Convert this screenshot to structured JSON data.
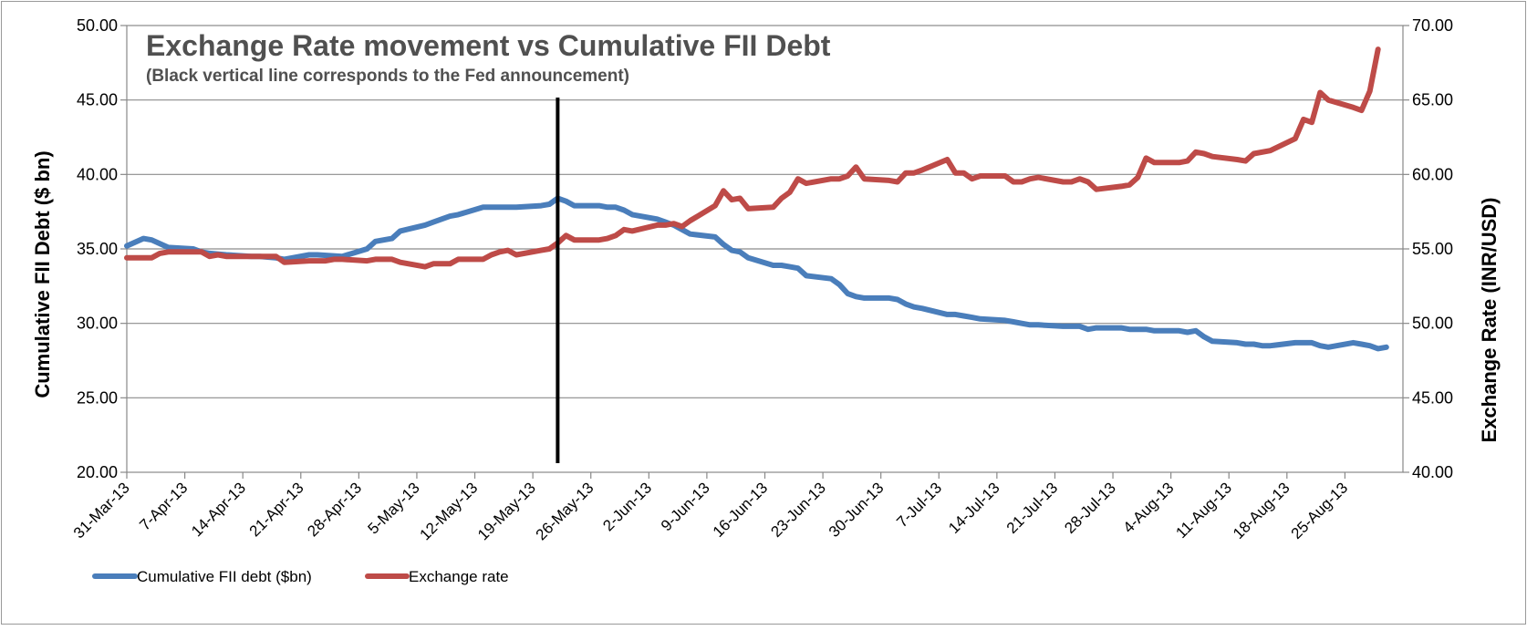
{
  "chart_data": {
    "type": "line",
    "title": "Exchange Rate movement vs Cumulative FII Debt",
    "subtitle": "(Black vertical line corresponds to the Fed announcement)",
    "ylabel": "Cumulative FII Debt ($ bn)",
    "y2label": "Exchange Rate (INR/USD)",
    "ylim": [
      20,
      50
    ],
    "y2lim": [
      40,
      70
    ],
    "yticks": [
      "20.00",
      "25.00",
      "30.00",
      "35.00",
      "40.00",
      "45.00",
      "50.00"
    ],
    "y2ticks": [
      "40.00",
      "45.00",
      "50.00",
      "55.00",
      "60.00",
      "65.00",
      "70.00"
    ],
    "xticks": [
      "31-Mar-13",
      "7-Apr-13",
      "14-Apr-13",
      "21-Apr-13",
      "28-Apr-13",
      "5-May-13",
      "12-May-13",
      "19-May-13",
      "26-May-13",
      "2-Jun-13",
      "9-Jun-13",
      "16-Jun-13",
      "23-Jun-13",
      "30-Jun-13",
      "7-Jul-13",
      "14-Jul-13",
      "21-Jul-13",
      "28-Jul-13",
      "4-Aug-13",
      "11-Aug-13",
      "18-Aug-13",
      "25-Aug-13"
    ],
    "grid": true,
    "legend_position": "bottom-left",
    "vline_date": "22-May-13",
    "series": [
      {
        "name": "Cumulative FII debt ($bn)",
        "color": "#4a7ebb",
        "axis": "left",
        "points": [
          [
            "31-Mar-13",
            35.2
          ],
          [
            "2-Apr-13",
            35.7
          ],
          [
            "3-Apr-13",
            35.6
          ],
          [
            "5-Apr-13",
            35.1
          ],
          [
            "8-Apr-13",
            35.0
          ],
          [
            "9-Apr-13",
            34.8
          ],
          [
            "10-Apr-13",
            34.7
          ],
          [
            "12-Apr-13",
            34.6
          ],
          [
            "15-Apr-13",
            34.5
          ],
          [
            "16-Apr-13",
            34.5
          ],
          [
            "18-Apr-13",
            34.4
          ],
          [
            "19-Apr-13",
            34.3
          ],
          [
            "22-Apr-13",
            34.6
          ],
          [
            "23-Apr-13",
            34.6
          ],
          [
            "26-Apr-13",
            34.5
          ],
          [
            "29-Apr-13",
            35.0
          ],
          [
            "30-Apr-13",
            35.5
          ],
          [
            "2-May-13",
            35.7
          ],
          [
            "3-May-13",
            36.2
          ],
          [
            "6-May-13",
            36.6
          ],
          [
            "7-May-13",
            36.8
          ],
          [
            "8-May-13",
            37.0
          ],
          [
            "9-May-13",
            37.2
          ],
          [
            "10-May-13",
            37.3
          ],
          [
            "13-May-13",
            37.8
          ],
          [
            "14-May-13",
            37.8
          ],
          [
            "16-May-13",
            37.8
          ],
          [
            "17-May-13",
            37.8
          ],
          [
            "20-May-13",
            37.9
          ],
          [
            "21-May-13",
            38.0
          ],
          [
            "22-May-13",
            38.4
          ],
          [
            "23-May-13",
            38.2
          ],
          [
            "24-May-13",
            37.9
          ],
          [
            "27-May-13",
            37.9
          ],
          [
            "28-May-13",
            37.8
          ],
          [
            "29-May-13",
            37.8
          ],
          [
            "30-May-13",
            37.6
          ],
          [
            "31-May-13",
            37.3
          ],
          [
            "3-Jun-13",
            37.0
          ],
          [
            "4-Jun-13",
            36.8
          ],
          [
            "5-Jun-13",
            36.6
          ],
          [
            "6-Jun-13",
            36.3
          ],
          [
            "7-Jun-13",
            36.0
          ],
          [
            "10-Jun-13",
            35.8
          ],
          [
            "11-Jun-13",
            35.3
          ],
          [
            "12-Jun-13",
            34.9
          ],
          [
            "13-Jun-13",
            34.8
          ],
          [
            "14-Jun-13",
            34.4
          ],
          [
            "17-Jun-13",
            33.9
          ],
          [
            "18-Jun-13",
            33.9
          ],
          [
            "19-Jun-13",
            33.8
          ],
          [
            "20-Jun-13",
            33.7
          ],
          [
            "21-Jun-13",
            33.2
          ],
          [
            "24-Jun-13",
            33.0
          ],
          [
            "25-Jun-13",
            32.6
          ],
          [
            "26-Jun-13",
            32.0
          ],
          [
            "27-Jun-13",
            31.8
          ],
          [
            "28-Jun-13",
            31.7
          ],
          [
            "1-Jul-13",
            31.7
          ],
          [
            "2-Jul-13",
            31.6
          ],
          [
            "3-Jul-13",
            31.3
          ],
          [
            "4-Jul-13",
            31.1
          ],
          [
            "5-Jul-13",
            31.0
          ],
          [
            "8-Jul-13",
            30.6
          ],
          [
            "9-Jul-13",
            30.6
          ],
          [
            "10-Jul-13",
            30.5
          ],
          [
            "11-Jul-13",
            30.4
          ],
          [
            "12-Jul-13",
            30.3
          ],
          [
            "15-Jul-13",
            30.2
          ],
          [
            "16-Jul-13",
            30.1
          ],
          [
            "17-Jul-13",
            30.0
          ],
          [
            "18-Jul-13",
            29.9
          ],
          [
            "19-Jul-13",
            29.9
          ],
          [
            "22-Jul-13",
            29.8
          ],
          [
            "23-Jul-13",
            29.8
          ],
          [
            "24-Jul-13",
            29.8
          ],
          [
            "25-Jul-13",
            29.6
          ],
          [
            "26-Jul-13",
            29.7
          ],
          [
            "29-Jul-13",
            29.7
          ],
          [
            "30-Jul-13",
            29.6
          ],
          [
            "31-Jul-13",
            29.6
          ],
          [
            "1-Aug-13",
            29.6
          ],
          [
            "2-Aug-13",
            29.5
          ],
          [
            "5-Aug-13",
            29.5
          ],
          [
            "6-Aug-13",
            29.4
          ],
          [
            "7-Aug-13",
            29.5
          ],
          [
            "8-Aug-13",
            29.1
          ],
          [
            "9-Aug-13",
            28.8
          ],
          [
            "12-Aug-13",
            28.7
          ],
          [
            "13-Aug-13",
            28.6
          ],
          [
            "14-Aug-13",
            28.6
          ],
          [
            "15-Aug-13",
            28.5
          ],
          [
            "16-Aug-13",
            28.5
          ],
          [
            "19-Aug-13",
            28.7
          ],
          [
            "20-Aug-13",
            28.7
          ],
          [
            "21-Aug-13",
            28.7
          ],
          [
            "22-Aug-13",
            28.5
          ],
          [
            "23-Aug-13",
            28.4
          ],
          [
            "26-Aug-13",
            28.7
          ],
          [
            "27-Aug-13",
            28.6
          ],
          [
            "28-Aug-13",
            28.5
          ],
          [
            "29-Aug-13",
            28.3
          ],
          [
            "30-Aug-13",
            28.4
          ]
        ]
      },
      {
        "name": "Exchange rate",
        "color": "#be4b48",
        "axis": "right",
        "points": [
          [
            "31-Mar-13",
            54.4
          ],
          [
            "2-Apr-13",
            54.4
          ],
          [
            "3-Apr-13",
            54.4
          ],
          [
            "4-Apr-13",
            54.7
          ],
          [
            "5-Apr-13",
            54.8
          ],
          [
            "8-Apr-13",
            54.8
          ],
          [
            "9-Apr-13",
            54.8
          ],
          [
            "10-Apr-13",
            54.5
          ],
          [
            "11-Apr-13",
            54.6
          ],
          [
            "12-Apr-13",
            54.5
          ],
          [
            "15-Apr-13",
            54.5
          ],
          [
            "16-Apr-13",
            54.5
          ],
          [
            "17-Apr-13",
            54.5
          ],
          [
            "18-Apr-13",
            54.5
          ],
          [
            "19-Apr-13",
            54.1
          ],
          [
            "22-Apr-13",
            54.2
          ],
          [
            "23-Apr-13",
            54.2
          ],
          [
            "24-Apr-13",
            54.2
          ],
          [
            "25-Apr-13",
            54.3
          ],
          [
            "26-Apr-13",
            54.3
          ],
          [
            "29-Apr-13",
            54.2
          ],
          [
            "30-Apr-13",
            54.3
          ],
          [
            "1-May-13",
            54.3
          ],
          [
            "2-May-13",
            54.3
          ],
          [
            "3-May-13",
            54.1
          ],
          [
            "6-May-13",
            53.8
          ],
          [
            "7-May-13",
            54.0
          ],
          [
            "8-May-13",
            54.0
          ],
          [
            "9-May-13",
            54.0
          ],
          [
            "10-May-13",
            54.3
          ],
          [
            "13-May-13",
            54.3
          ],
          [
            "14-May-13",
            54.6
          ],
          [
            "15-May-13",
            54.8
          ],
          [
            "16-May-13",
            54.9
          ],
          [
            "17-May-13",
            54.6
          ],
          [
            "20-May-13",
            54.9
          ],
          [
            "21-May-13",
            55.0
          ],
          [
            "22-May-13",
            55.4
          ],
          [
            "23-May-13",
            55.9
          ],
          [
            "24-May-13",
            55.6
          ],
          [
            "27-May-13",
            55.6
          ],
          [
            "28-May-13",
            55.7
          ],
          [
            "29-May-13",
            55.9
          ],
          [
            "30-May-13",
            56.3
          ],
          [
            "31-May-13",
            56.2
          ],
          [
            "3-Jun-13",
            56.6
          ],
          [
            "4-Jun-13",
            56.6
          ],
          [
            "5-Jun-13",
            56.7
          ],
          [
            "6-Jun-13",
            56.5
          ],
          [
            "7-Jun-13",
            56.9
          ],
          [
            "10-Jun-13",
            57.9
          ],
          [
            "11-Jun-13",
            58.9
          ],
          [
            "12-Jun-13",
            58.3
          ],
          [
            "13-Jun-13",
            58.4
          ],
          [
            "14-Jun-13",
            57.7
          ],
          [
            "17-Jun-13",
            57.8
          ],
          [
            "18-Jun-13",
            58.4
          ],
          [
            "19-Jun-13",
            58.8
          ],
          [
            "20-Jun-13",
            59.7
          ],
          [
            "21-Jun-13",
            59.4
          ],
          [
            "24-Jun-13",
            59.7
          ],
          [
            "25-Jun-13",
            59.7
          ],
          [
            "26-Jun-13",
            59.9
          ],
          [
            "27-Jun-13",
            60.5
          ],
          [
            "28-Jun-13",
            59.7
          ],
          [
            "1-Jul-13",
            59.6
          ],
          [
            "2-Jul-13",
            59.5
          ],
          [
            "3-Jul-13",
            60.1
          ],
          [
            "4-Jul-13",
            60.1
          ],
          [
            "5-Jul-13",
            60.3
          ],
          [
            "8-Jul-13",
            61.0
          ],
          [
            "9-Jul-13",
            60.1
          ],
          [
            "10-Jul-13",
            60.1
          ],
          [
            "11-Jul-13",
            59.7
          ],
          [
            "12-Jul-13",
            59.9
          ],
          [
            "15-Jul-13",
            59.9
          ],
          [
            "16-Jul-13",
            59.5
          ],
          [
            "17-Jul-13",
            59.5
          ],
          [
            "18-Jul-13",
            59.7
          ],
          [
            "19-Jul-13",
            59.8
          ],
          [
            "22-Jul-13",
            59.5
          ],
          [
            "23-Jul-13",
            59.5
          ],
          [
            "24-Jul-13",
            59.7
          ],
          [
            "25-Jul-13",
            59.5
          ],
          [
            "26-Jul-13",
            59.0
          ],
          [
            "29-Jul-13",
            59.2
          ],
          [
            "30-Jul-13",
            59.3
          ],
          [
            "31-Jul-13",
            59.8
          ],
          [
            "1-Aug-13",
            61.1
          ],
          [
            "2-Aug-13",
            60.8
          ],
          [
            "5-Aug-13",
            60.8
          ],
          [
            "6-Aug-13",
            60.9
          ],
          [
            "7-Aug-13",
            61.5
          ],
          [
            "8-Aug-13",
            61.4
          ],
          [
            "9-Aug-13",
            61.2
          ],
          [
            "12-Aug-13",
            61.0
          ],
          [
            "13-Aug-13",
            60.9
          ],
          [
            "14-Aug-13",
            61.4
          ],
          [
            "16-Aug-13",
            61.6
          ],
          [
            "19-Aug-13",
            62.4
          ],
          [
            "20-Aug-13",
            63.7
          ],
          [
            "21-Aug-13",
            63.5
          ],
          [
            "22-Aug-13",
            65.5
          ],
          [
            "23-Aug-13",
            65.0
          ],
          [
            "26-Aug-13",
            64.5
          ],
          [
            "27-Aug-13",
            64.3
          ],
          [
            "28-Aug-13",
            65.6
          ],
          [
            "29-Aug-13",
            68.4
          ]
        ]
      }
    ]
  }
}
